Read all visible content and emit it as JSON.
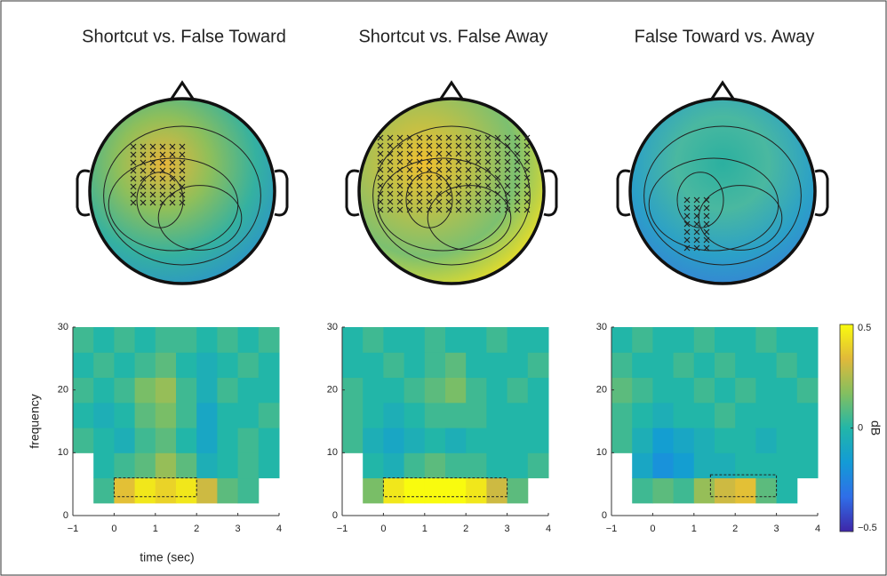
{
  "chart_data": [
    {
      "type": "heatmap",
      "title": "Shortcut vs. False Toward",
      "xlabel": "time (sec)",
      "ylabel": "frequency",
      "xlim": [
        -1,
        4
      ],
      "ylim": [
        0,
        30
      ],
      "xticks": [
        {
          "value": -1,
          "label": "−1"
        },
        0,
        1,
        2,
        3,
        4
      ],
      "yticks": [
        0,
        10,
        20,
        30
      ],
      "x": [
        -0.75,
        -0.25,
        0.25,
        0.75,
        1.25,
        1.75,
        2.25,
        2.75,
        3.25,
        3.75
      ],
      "y": [
        4,
        8,
        12,
        16,
        20,
        24,
        28
      ],
      "values": [
        [
          null,
          0.05,
          0.35,
          0.45,
          0.4,
          0.45,
          0.3,
          0.1,
          0.05,
          null
        ],
        [
          null,
          0,
          0.05,
          0.1,
          0.2,
          0.1,
          -0.05,
          0,
          0.05,
          0
        ],
        [
          0.05,
          0,
          -0.05,
          0.05,
          0.1,
          0,
          -0.1,
          0,
          0.05,
          0
        ],
        [
          0,
          -0.05,
          0,
          0.1,
          0.15,
          0.05,
          -0.1,
          0,
          0,
          0.05
        ],
        [
          0.05,
          0,
          0.05,
          0.15,
          0.2,
          0.05,
          -0.05,
          0.05,
          0,
          0
        ],
        [
          0,
          0.05,
          0,
          0.05,
          0.1,
          0,
          -0.05,
          0,
          0.05,
          0
        ],
        [
          0.05,
          0,
          0.05,
          0,
          0.05,
          0.05,
          0,
          0.05,
          0,
          0.05
        ]
      ],
      "box": {
        "x": [
          0,
          2
        ],
        "y": [
          3,
          6
        ]
      }
    },
    {
      "type": "heatmap",
      "title": "Shortcut vs. False Away",
      "xlim": [
        -1,
        4
      ],
      "ylim": [
        0,
        30
      ],
      "xticks": [
        {
          "value": -1,
          "label": "−1"
        },
        0,
        1,
        2,
        3,
        4
      ],
      "yticks": [
        0,
        10,
        20,
        30
      ],
      "x": [
        -0.75,
        -0.25,
        0.25,
        0.75,
        1.25,
        1.75,
        2.25,
        2.75,
        3.25,
        3.75
      ],
      "y": [
        4,
        8,
        12,
        16,
        20,
        24,
        28
      ],
      "values": [
        [
          null,
          0.15,
          0.45,
          0.5,
          0.5,
          0.5,
          0.45,
          0.3,
          0.1,
          null
        ],
        [
          null,
          0,
          -0.05,
          0.05,
          0.1,
          0.05,
          0.05,
          0,
          0,
          0.05
        ],
        [
          0.05,
          -0.05,
          -0.1,
          -0.05,
          0,
          -0.05,
          0,
          0,
          0,
          0
        ],
        [
          0.05,
          0,
          -0.05,
          0,
          0.05,
          0.05,
          0.05,
          0,
          0,
          0
        ],
        [
          0.05,
          0,
          0,
          0.05,
          0.1,
          0.15,
          0.05,
          0,
          0.05,
          0
        ],
        [
          0,
          0,
          0.05,
          0,
          0.05,
          0.1,
          0,
          0,
          0,
          0.05
        ],
        [
          0,
          0.05,
          0,
          0,
          0.05,
          0,
          0,
          0.05,
          0,
          0
        ]
      ],
      "box": {
        "x": [
          0,
          3
        ],
        "y": [
          3,
          6
        ]
      }
    },
    {
      "type": "heatmap",
      "title": "False Toward vs. Away",
      "xlim": [
        -1,
        4
      ],
      "ylim": [
        0,
        30
      ],
      "xticks": [
        {
          "value": -1,
          "label": "−1"
        },
        0,
        1,
        2,
        3,
        4
      ],
      "yticks": [
        0,
        10,
        20,
        30
      ],
      "x": [
        -0.75,
        -0.25,
        0.25,
        0.75,
        1.25,
        1.75,
        2.25,
        2.75,
        3.25,
        3.75
      ],
      "y": [
        4,
        8,
        12,
        16,
        20,
        24,
        28
      ],
      "values": [
        [
          null,
          0.05,
          0.1,
          0.05,
          0.2,
          0.3,
          0.35,
          0.1,
          0,
          null
        ],
        [
          null,
          -0.1,
          -0.2,
          -0.15,
          -0.05,
          -0.05,
          0,
          0,
          0,
          0
        ],
        [
          0.05,
          -0.05,
          -0.15,
          -0.1,
          -0.05,
          0,
          0,
          -0.05,
          0,
          0
        ],
        [
          0.05,
          0,
          -0.05,
          0,
          0,
          0.05,
          0,
          0,
          0,
          0
        ],
        [
          0.1,
          0.05,
          0,
          0,
          0.05,
          0,
          0.05,
          0,
          0,
          0.05
        ],
        [
          0.05,
          0,
          0,
          0.05,
          0,
          0.05,
          0,
          0,
          0.05,
          0
        ],
        [
          0,
          0.05,
          0,
          0,
          0.05,
          0,
          0,
          0.05,
          0,
          0
        ]
      ],
      "box": {
        "x": [
          1.4,
          3
        ],
        "y": [
          3,
          6.5
        ]
      }
    }
  ],
  "colorbar": {
    "clim": [
      -0.5,
      0.5
    ],
    "ticks": [
      0.5,
      0,
      {
        "value": -0.5,
        "label": "−0.5"
      }
    ],
    "label": "dB",
    "colormap": [
      "#3e26a8",
      "#2f6ee8",
      "#139bd6",
      "#22b6a8",
      "#83bf60",
      "#e0b93a",
      "#f9fb0e"
    ]
  }
}
